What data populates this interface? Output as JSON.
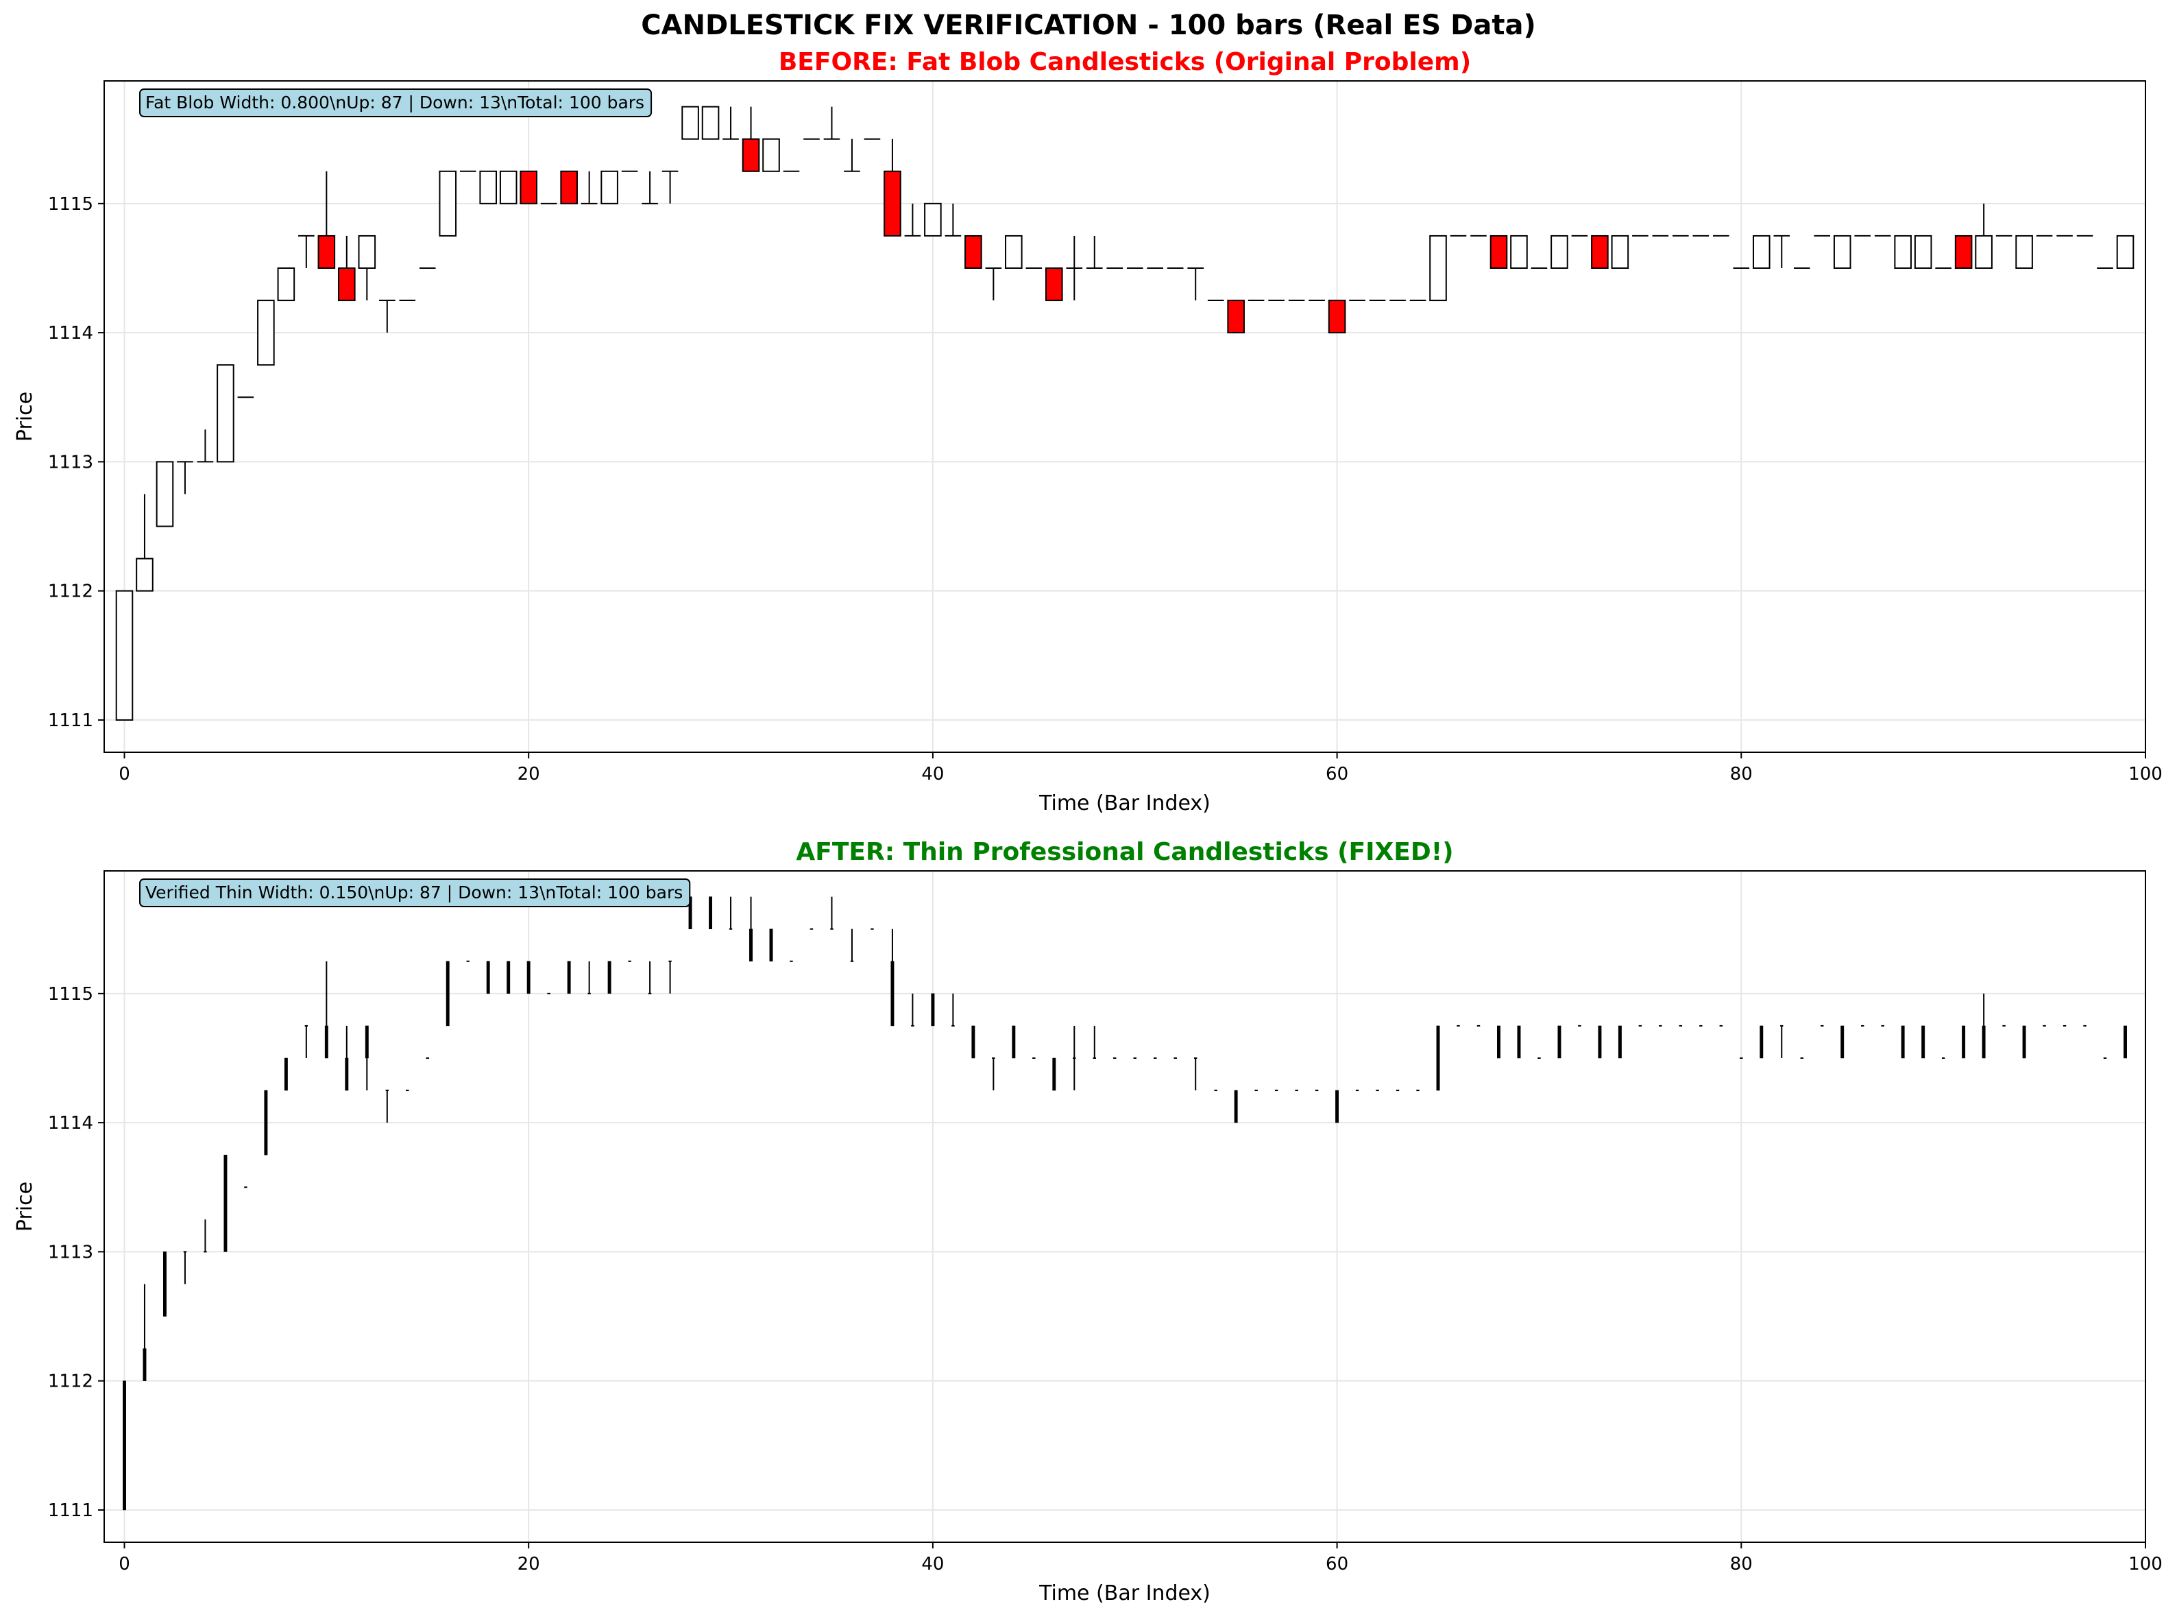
{
  "figure": {
    "suptitle": "CANDLESTICK FIX VERIFICATION - 100 bars (Real ES Data)"
  },
  "colors": {
    "up_body": "#ffffff",
    "down_body": "#ff0000",
    "edge": "#000000",
    "before_title": "#ff0000",
    "after_title": "#008000",
    "info_box": "#add8e6",
    "grid": "#e6e6e6"
  },
  "chart_data": [
    {
      "type": "candlestick",
      "title": "BEFORE: Fat Blob Candlesticks (Original Problem)",
      "xlabel": "Time (Bar Index)",
      "ylabel": "Price",
      "xlim": [
        -1,
        100
      ],
      "ylim": [
        1110.75,
        1115.95
      ],
      "xticks": [
        0,
        20,
        40,
        60,
        80,
        100
      ],
      "yticks": [
        1111,
        1112,
        1113,
        1114,
        1115
      ],
      "grid": true,
      "candle_width": 0.8,
      "annotation": "Fat Blob Width: 0.800\\nUp: 87 | Down: 13\\nTotal: 100 bars"
    },
    {
      "type": "candlestick",
      "title": "AFTER: Thin Professional Candlesticks (FIXED!)",
      "xlabel": "Time (Bar Index)",
      "ylabel": "Price",
      "xlim": [
        -1,
        100
      ],
      "ylim": [
        1110.75,
        1115.95
      ],
      "xticks": [
        0,
        20,
        40,
        60,
        80,
        100
      ],
      "yticks": [
        1111,
        1112,
        1113,
        1114,
        1115
      ],
      "grid": true,
      "candle_width": 0.15,
      "annotation": "Verified Thin Width: 0.150\\nUp: 87 | Down: 13\\nTotal: 100 bars"
    }
  ],
  "bars": [
    [
      1111,
      1112,
      1111,
      1112
    ],
    [
      1112,
      1112.75,
      1112,
      1112.25
    ],
    [
      1112.5,
      1113,
      1112.5,
      1113
    ],
    [
      1113,
      1113,
      1112.75,
      1113
    ],
    [
      1113,
      1113.25,
      1113,
      1113
    ],
    [
      1113,
      1113.75,
      1113,
      1113.75
    ],
    [
      1113.5,
      1113.5,
      1113.5,
      1113.5
    ],
    [
      1113.75,
      1114.25,
      1113.75,
      1114.25
    ],
    [
      1114.25,
      1114.5,
      1114.25,
      1114.5
    ],
    [
      1114.75,
      1114.75,
      1114.5,
      1114.75
    ],
    [
      1114.75,
      1115.25,
      1114.5,
      1114.5
    ],
    [
      1114.5,
      1114.75,
      1114.25,
      1114.25
    ],
    [
      1114.5,
      1114.75,
      1114.25,
      1114.75
    ],
    [
      1114.25,
      1114.25,
      1114,
      1114.25
    ],
    [
      1114.25,
      1114.25,
      1114.25,
      1114.25
    ],
    [
      1114.5,
      1114.5,
      1114.5,
      1114.5
    ],
    [
      1114.75,
      1115.25,
      1114.75,
      1115.25
    ],
    [
      1115.25,
      1115.25,
      1115.25,
      1115.25
    ],
    [
      1115,
      1115.25,
      1115,
      1115.25
    ],
    [
      1115,
      1115.25,
      1115,
      1115.25
    ],
    [
      1115.25,
      1115.25,
      1115,
      1115
    ],
    [
      1115,
      1115,
      1115,
      1115
    ],
    [
      1115.25,
      1115.25,
      1115,
      1115
    ],
    [
      1115,
      1115.25,
      1115,
      1115
    ],
    [
      1115,
      1115.25,
      1115,
      1115.25
    ],
    [
      1115.25,
      1115.25,
      1115.25,
      1115.25
    ],
    [
      1115,
      1115.25,
      1115,
      1115
    ],
    [
      1115.25,
      1115.25,
      1115,
      1115.25
    ],
    [
      1115.5,
      1115.75,
      1115.5,
      1115.75
    ],
    [
      1115.5,
      1115.75,
      1115.5,
      1115.75
    ],
    [
      1115.5,
      1115.75,
      1115.5,
      1115.5
    ],
    [
      1115.5,
      1115.75,
      1115.25,
      1115.25
    ],
    [
      1115.25,
      1115.5,
      1115.25,
      1115.5
    ],
    [
      1115.25,
      1115.25,
      1115.25,
      1115.25
    ],
    [
      1115.5,
      1115.5,
      1115.5,
      1115.5
    ],
    [
      1115.5,
      1115.75,
      1115.5,
      1115.5
    ],
    [
      1115.25,
      1115.5,
      1115.25,
      1115.25
    ],
    [
      1115.5,
      1115.5,
      1115.5,
      1115.5
    ],
    [
      1115.25,
      1115.5,
      1114.75,
      1114.75
    ],
    [
      1114.75,
      1115,
      1114.75,
      1114.75
    ],
    [
      1114.75,
      1115,
      1114.75,
      1115
    ],
    [
      1114.75,
      1115,
      1114.75,
      1114.75
    ],
    [
      1114.75,
      1114.75,
      1114.5,
      1114.5
    ],
    [
      1114.5,
      1114.5,
      1114.25,
      1114.5
    ],
    [
      1114.5,
      1114.75,
      1114.5,
      1114.75
    ],
    [
      1114.5,
      1114.5,
      1114.5,
      1114.5
    ],
    [
      1114.5,
      1114.5,
      1114.25,
      1114.25
    ],
    [
      1114.5,
      1114.75,
      1114.25,
      1114.5
    ],
    [
      1114.5,
      1114.75,
      1114.5,
      1114.5
    ],
    [
      1114.5,
      1114.5,
      1114.5,
      1114.5
    ],
    [
      1114.5,
      1114.5,
      1114.5,
      1114.5
    ],
    [
      1114.5,
      1114.5,
      1114.5,
      1114.5
    ],
    [
      1114.5,
      1114.5,
      1114.5,
      1114.5
    ],
    [
      1114.5,
      1114.5,
      1114.25,
      1114.5
    ],
    [
      1114.25,
      1114.25,
      1114.25,
      1114.25
    ],
    [
      1114.25,
      1114.25,
      1114,
      1114
    ],
    [
      1114.25,
      1114.25,
      1114.25,
      1114.25
    ],
    [
      1114.25,
      1114.25,
      1114.25,
      1114.25
    ],
    [
      1114.25,
      1114.25,
      1114.25,
      1114.25
    ],
    [
      1114.25,
      1114.25,
      1114.25,
      1114.25
    ],
    [
      1114.25,
      1114.25,
      1114,
      1114
    ],
    [
      1114.25,
      1114.25,
      1114.25,
      1114.25
    ],
    [
      1114.25,
      1114.25,
      1114.25,
      1114.25
    ],
    [
      1114.25,
      1114.25,
      1114.25,
      1114.25
    ],
    [
      1114.25,
      1114.25,
      1114.25,
      1114.25
    ],
    [
      1114.25,
      1114.75,
      1114.25,
      1114.75
    ],
    [
      1114.75,
      1114.75,
      1114.75,
      1114.75
    ],
    [
      1114.75,
      1114.75,
      1114.75,
      1114.75
    ],
    [
      1114.75,
      1114.75,
      1114.5,
      1114.5
    ],
    [
      1114.5,
      1114.75,
      1114.5,
      1114.75
    ],
    [
      1114.5,
      1114.5,
      1114.5,
      1114.5
    ],
    [
      1114.5,
      1114.75,
      1114.5,
      1114.75
    ],
    [
      1114.75,
      1114.75,
      1114.75,
      1114.75
    ],
    [
      1114.75,
      1114.75,
      1114.5,
      1114.5
    ],
    [
      1114.5,
      1114.75,
      1114.5,
      1114.75
    ],
    [
      1114.75,
      1114.75,
      1114.75,
      1114.75
    ],
    [
      1114.75,
      1114.75,
      1114.75,
      1114.75
    ],
    [
      1114.75,
      1114.75,
      1114.75,
      1114.75
    ],
    [
      1114.75,
      1114.75,
      1114.75,
      1114.75
    ],
    [
      1114.75,
      1114.75,
      1114.75,
      1114.75
    ],
    [
      1114.5,
      1114.5,
      1114.5,
      1114.5
    ],
    [
      1114.5,
      1114.75,
      1114.5,
      1114.75
    ],
    [
      1114.75,
      1114.75,
      1114.5,
      1114.75
    ],
    [
      1114.5,
      1114.5,
      1114.5,
      1114.5
    ],
    [
      1114.75,
      1114.75,
      1114.75,
      1114.75
    ],
    [
      1114.5,
      1114.75,
      1114.5,
      1114.75
    ],
    [
      1114.75,
      1114.75,
      1114.75,
      1114.75
    ],
    [
      1114.75,
      1114.75,
      1114.75,
      1114.75
    ],
    [
      1114.5,
      1114.75,
      1114.5,
      1114.75
    ],
    [
      1114.5,
      1114.75,
      1114.5,
      1114.75
    ],
    [
      1114.5,
      1114.5,
      1114.5,
      1114.5
    ],
    [
      1114.75,
      1114.75,
      1114.5,
      1114.5
    ],
    [
      1114.5,
      1115,
      1114.5,
      1114.75
    ],
    [
      1114.75,
      1114.75,
      1114.75,
      1114.75
    ],
    [
      1114.5,
      1114.75,
      1114.5,
      1114.75
    ],
    [
      1114.75,
      1114.75,
      1114.75,
      1114.75
    ],
    [
      1114.75,
      1114.75,
      1114.75,
      1114.75
    ],
    [
      1114.75,
      1114.75,
      1114.75,
      1114.75
    ],
    [
      1114.5,
      1114.5,
      1114.5,
      1114.5
    ],
    [
      1114.5,
      1114.75,
      1114.5,
      1114.75
    ]
  ]
}
